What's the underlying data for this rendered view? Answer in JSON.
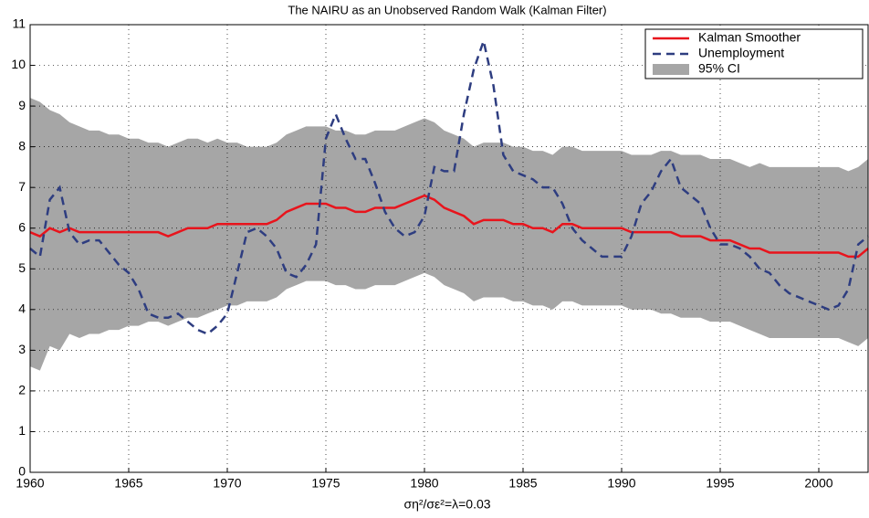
{
  "chart_data": {
    "type": "line",
    "title": "The NAIRU as an Unobserved Random Walk (Kalman Filter)",
    "x_label": "ση²/σε²=λ=0.03",
    "x": [
      1960,
      1960.5,
      1961,
      1961.5,
      1962,
      1962.5,
      1963,
      1963.5,
      1964,
      1964.5,
      1965,
      1965.5,
      1966,
      1966.5,
      1967,
      1967.5,
      1968,
      1968.5,
      1969,
      1969.5,
      1970,
      1970.5,
      1971,
      1971.5,
      1972,
      1972.5,
      1973,
      1973.5,
      1974,
      1974.5,
      1975,
      1975.5,
      1976,
      1976.5,
      1977,
      1977.5,
      1978,
      1978.5,
      1979,
      1979.5,
      1980,
      1980.5,
      1981,
      1981.5,
      1982,
      1982.5,
      1983,
      1983.5,
      1984,
      1984.5,
      1985,
      1985.5,
      1986,
      1986.5,
      1987,
      1987.5,
      1988,
      1988.5,
      1989,
      1989.5,
      1990,
      1990.5,
      1991,
      1991.5,
      1992,
      1992.5,
      1993,
      1993.5,
      1994,
      1994.5,
      1995,
      1995.5,
      1996,
      1996.5,
      1997,
      1997.5,
      1998,
      1998.5,
      1999,
      1999.5,
      2000,
      2000.5,
      2001,
      2001.5,
      2002,
      2002.5
    ],
    "band": {
      "name": "95% CI",
      "color": "#a6a6a6",
      "upper": [
        9.2,
        9.1,
        8.9,
        8.8,
        8.6,
        8.5,
        8.4,
        8.4,
        8.3,
        8.3,
        8.2,
        8.2,
        8.1,
        8.1,
        8.0,
        8.1,
        8.2,
        8.2,
        8.1,
        8.2,
        8.1,
        8.1,
        8.0,
        8.0,
        8.0,
        8.1,
        8.3,
        8.4,
        8.5,
        8.5,
        8.5,
        8.4,
        8.4,
        8.3,
        8.3,
        8.4,
        8.4,
        8.4,
        8.5,
        8.6,
        8.7,
        8.6,
        8.4,
        8.3,
        8.2,
        8.0,
        8.1,
        8.1,
        8.1,
        8.0,
        8.0,
        7.9,
        7.9,
        7.8,
        8.0,
        8.0,
        7.9,
        7.9,
        7.9,
        7.9,
        7.9,
        7.8,
        7.8,
        7.8,
        7.9,
        7.9,
        7.8,
        7.8,
        7.8,
        7.7,
        7.7,
        7.7,
        7.6,
        7.5,
        7.6,
        7.5,
        7.5,
        7.5,
        7.5,
        7.5,
        7.5,
        7.5,
        7.5,
        7.4,
        7.5,
        7.7
      ],
      "lower": [
        2.6,
        2.5,
        3.1,
        3.0,
        3.4,
        3.3,
        3.4,
        3.4,
        3.5,
        3.5,
        3.6,
        3.6,
        3.7,
        3.7,
        3.6,
        3.7,
        3.8,
        3.8,
        3.9,
        4.0,
        4.1,
        4.1,
        4.2,
        4.2,
        4.2,
        4.3,
        4.5,
        4.6,
        4.7,
        4.7,
        4.7,
        4.6,
        4.6,
        4.5,
        4.5,
        4.6,
        4.6,
        4.6,
        4.7,
        4.8,
        4.9,
        4.8,
        4.6,
        4.5,
        4.4,
        4.2,
        4.3,
        4.3,
        4.3,
        4.2,
        4.2,
        4.1,
        4.1,
        4.0,
        4.2,
        4.2,
        4.1,
        4.1,
        4.1,
        4.1,
        4.1,
        4.0,
        4.0,
        4.0,
        3.9,
        3.9,
        3.8,
        3.8,
        3.8,
        3.7,
        3.7,
        3.7,
        3.6,
        3.5,
        3.4,
        3.3,
        3.3,
        3.3,
        3.3,
        3.3,
        3.3,
        3.3,
        3.3,
        3.2,
        3.1,
        3.3
      ]
    },
    "series": [
      {
        "name": "Kalman Smoother",
        "color": "#e8141c",
        "dash": false,
        "values": [
          5.9,
          5.8,
          6.0,
          5.9,
          6.0,
          5.9,
          5.9,
          5.9,
          5.9,
          5.9,
          5.9,
          5.9,
          5.9,
          5.9,
          5.8,
          5.9,
          6.0,
          6.0,
          6.0,
          6.1,
          6.1,
          6.1,
          6.1,
          6.1,
          6.1,
          6.2,
          6.4,
          6.5,
          6.6,
          6.6,
          6.6,
          6.5,
          6.5,
          6.4,
          6.4,
          6.5,
          6.5,
          6.5,
          6.6,
          6.7,
          6.8,
          6.7,
          6.5,
          6.4,
          6.3,
          6.1,
          6.2,
          6.2,
          6.2,
          6.1,
          6.1,
          6.0,
          6.0,
          5.9,
          6.1,
          6.1,
          6.0,
          6.0,
          6.0,
          6.0,
          6.0,
          5.9,
          5.9,
          5.9,
          5.9,
          5.9,
          5.8,
          5.8,
          5.8,
          5.7,
          5.7,
          5.7,
          5.6,
          5.5,
          5.5,
          5.4,
          5.4,
          5.4,
          5.4,
          5.4,
          5.4,
          5.4,
          5.4,
          5.3,
          5.3,
          5.5
        ]
      },
      {
        "name": "Unemployment",
        "color": "#2e3d80",
        "dash": true,
        "values": [
          5.5,
          5.3,
          6.7,
          7.0,
          5.9,
          5.6,
          5.7,
          5.7,
          5.4,
          5.1,
          4.9,
          4.5,
          3.9,
          3.8,
          3.8,
          3.9,
          3.7,
          3.5,
          3.4,
          3.6,
          3.9,
          4.9,
          5.9,
          6.0,
          5.8,
          5.5,
          4.9,
          4.8,
          5.1,
          5.6,
          8.2,
          8.8,
          8.2,
          7.7,
          7.7,
          7.1,
          6.4,
          6.0,
          5.8,
          5.9,
          6.3,
          7.5,
          7.4,
          7.4,
          8.8,
          9.9,
          10.6,
          9.5,
          7.8,
          7.4,
          7.3,
          7.2,
          7.0,
          7.0,
          6.6,
          6.0,
          5.7,
          5.5,
          5.3,
          5.3,
          5.3,
          5.8,
          6.6,
          6.9,
          7.4,
          7.7,
          7.0,
          6.8,
          6.6,
          6.0,
          5.6,
          5.6,
          5.5,
          5.3,
          5.0,
          4.9,
          4.6,
          4.4,
          4.3,
          4.2,
          4.1,
          4.0,
          4.1,
          4.5,
          5.6,
          5.8
        ]
      }
    ],
    "xlim": [
      1960,
      2002.5
    ],
    "ylim": [
      0,
      11
    ],
    "xticks": [
      1960,
      1965,
      1970,
      1975,
      1980,
      1985,
      1990,
      1995,
      2000
    ],
    "yticks": [
      0,
      1,
      2,
      3,
      4,
      5,
      6,
      7,
      8,
      9,
      10,
      11
    ],
    "grid": true,
    "legend": "upper right"
  }
}
